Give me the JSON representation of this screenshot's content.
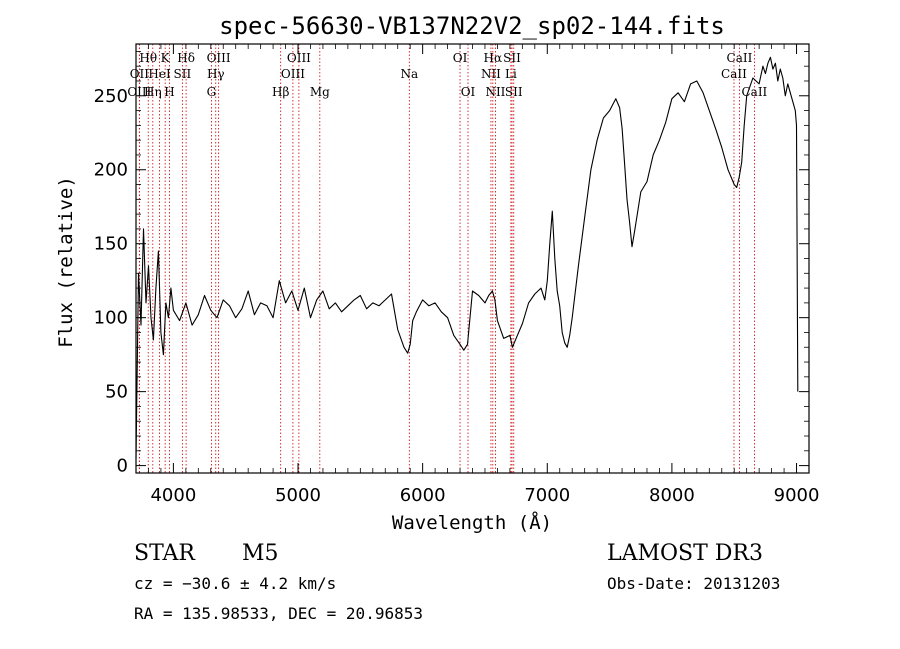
{
  "title": "spec-56630-VB137N22V2_sp02-144.fits",
  "info": {
    "class": "STAR",
    "subclass": "M5",
    "survey": "LAMOST DR3",
    "cz": "cz = −30.6 ± 4.2 km/s",
    "obs_date": "Obs-Date: 20131203",
    "radec": "RA = 135.98533, DEC =  20.96853"
  },
  "chart_data": {
    "type": "line",
    "title": "spec-56630-VB137N22V2_sp02-144.fits",
    "xlabel": "Wavelength (Å)",
    "ylabel": "Flux (relative)",
    "xlim": [
      3700,
      9100
    ],
    "ylim": [
      -5,
      285
    ],
    "x_ticks": [
      4000,
      5000,
      6000,
      7000,
      8000,
      9000
    ],
    "x_tick_labels": [
      "4000",
      "5000",
      "6000",
      "7000",
      "8000",
      "9000"
    ],
    "y_ticks": [
      0,
      50,
      100,
      150,
      200,
      250
    ],
    "y_tick_labels": [
      "0",
      "50",
      "100",
      "150",
      "200",
      "250"
    ],
    "grid": false,
    "line_color": "#000000",
    "marker_color": "#cc0000",
    "lines": [
      {
        "label": "Hθ",
        "wave": 3798,
        "row": 1
      },
      {
        "label": "OII",
        "wave": 3727,
        "row": 2
      },
      {
        "label": "OIII",
        "wave": 3727,
        "row": 3
      },
      {
        "label": "K",
        "wave": 3934,
        "row": 1
      },
      {
        "label": "HeI",
        "wave": 3889,
        "row": 2
      },
      {
        "label": "Hη",
        "wave": 3835,
        "row": 3
      },
      {
        "label": "SII",
        "wave": 4072,
        "row": 2
      },
      {
        "label": "H",
        "wave": 3969,
        "row": 3
      },
      {
        "label": "Hδ",
        "wave": 4102,
        "row": 1
      },
      {
        "label": "OIII",
        "wave": 4363,
        "row": 1
      },
      {
        "label": "Hγ",
        "wave": 4340,
        "row": 2
      },
      {
        "label": "G",
        "wave": 4305,
        "row": 3
      },
      {
        "label": "Hβ",
        "wave": 4861,
        "row": 3
      },
      {
        "label": "OIII",
        "wave": 5007,
        "row": 1
      },
      {
        "label": "OIII",
        "wave": 4959,
        "row": 2
      },
      {
        "label": "Mg",
        "wave": 5175,
        "row": 3
      },
      {
        "label": "Na",
        "wave": 5893,
        "row": 2
      },
      {
        "label": "OI",
        "wave": 6300,
        "row": 1
      },
      {
        "label": "OI",
        "wave": 6364,
        "row": 3
      },
      {
        "label": "Hα",
        "wave": 6563,
        "row": 1
      },
      {
        "label": "NII",
        "wave": 6548,
        "row": 2
      },
      {
        "label": "NII",
        "wave": 6584,
        "row": 3
      },
      {
        "label": "SII",
        "wave": 6717,
        "row": 1
      },
      {
        "label": "Li",
        "wave": 6708,
        "row": 2
      },
      {
        "label": "SII",
        "wave": 6731,
        "row": 3
      },
      {
        "label": "CaII",
        "wave": 8542,
        "row": 1
      },
      {
        "label": "CaII",
        "wave": 8498,
        "row": 2
      },
      {
        "label": "CaII",
        "wave": 8662,
        "row": 3
      }
    ],
    "series": [
      {
        "x": [
          3700,
          3720,
          3740,
          3760,
          3780,
          3800,
          3820,
          3840,
          3860,
          3880,
          3900,
          3920,
          3940,
          3960,
          3980,
          4000,
          4050,
          4100,
          4150,
          4200,
          4250,
          4300,
          4350,
          4400,
          4450,
          4500,
          4550,
          4600,
          4650,
          4700,
          4750,
          4800,
          4850,
          4900,
          4950,
          5000,
          5050,
          5100,
          5150,
          5200,
          5250,
          5300,
          5350,
          5400,
          5450,
          5500,
          5550,
          5600,
          5650,
          5700,
          5750,
          5800,
          5850,
          5880,
          5900,
          5920,
          5950,
          6000,
          6050,
          6100,
          6150,
          6200,
          6250,
          6300,
          6330,
          6360,
          6400,
          6450,
          6500,
          6530,
          6560,
          6580,
          6600,
          6650,
          6700,
          6720,
          6750,
          6800,
          6850,
          6900,
          6950,
          6980,
          7000,
          7020,
          7040,
          7060,
          7080,
          7100,
          7120,
          7140,
          7160,
          7180,
          7200,
          7250,
          7300,
          7350,
          7400,
          7450,
          7500,
          7550,
          7580,
          7600,
          7620,
          7640,
          7660,
          7680,
          7700,
          7750,
          7800,
          7850,
          7900,
          7950,
          8000,
          8050,
          8100,
          8150,
          8200,
          8250,
          8300,
          8350,
          8400,
          8450,
          8500,
          8520,
          8540,
          8560,
          8580,
          8600,
          8650,
          8700,
          8730,
          8750,
          8770,
          8790,
          8810,
          8830,
          8850,
          8870,
          8890,
          8910,
          8930,
          8950,
          8970,
          8990,
          9000,
          9010
        ],
        "y": [
          5,
          130,
          95,
          160,
          110,
          135,
          100,
          85,
          120,
          145,
          90,
          75,
          110,
          100,
          120,
          105,
          98,
          110,
          95,
          102,
          115,
          105,
          100,
          112,
          108,
          100,
          106,
          118,
          102,
          110,
          108,
          100,
          125,
          110,
          118,
          105,
          120,
          100,
          112,
          118,
          106,
          110,
          104,
          108,
          112,
          115,
          106,
          110,
          108,
          112,
          116,
          92,
          80,
          76,
          82,
          98,
          104,
          112,
          108,
          110,
          104,
          100,
          88,
          82,
          78,
          82,
          118,
          115,
          110,
          115,
          118,
          112,
          98,
          86,
          88,
          80,
          86,
          96,
          110,
          116,
          120,
          112,
          125,
          150,
          172,
          140,
          118,
          108,
          90,
          83,
          80,
          88,
          100,
          135,
          168,
          200,
          220,
          235,
          240,
          248,
          242,
          228,
          205,
          180,
          165,
          148,
          158,
          185,
          192,
          210,
          220,
          232,
          248,
          252,
          246,
          258,
          260,
          252,
          240,
          228,
          215,
          200,
          190,
          188,
          195,
          205,
          230,
          250,
          262,
          258,
          270,
          265,
          272,
          276,
          268,
          272,
          260,
          268,
          262,
          250,
          258,
          252,
          246,
          240,
          230,
          50
        ]
      }
    ]
  }
}
